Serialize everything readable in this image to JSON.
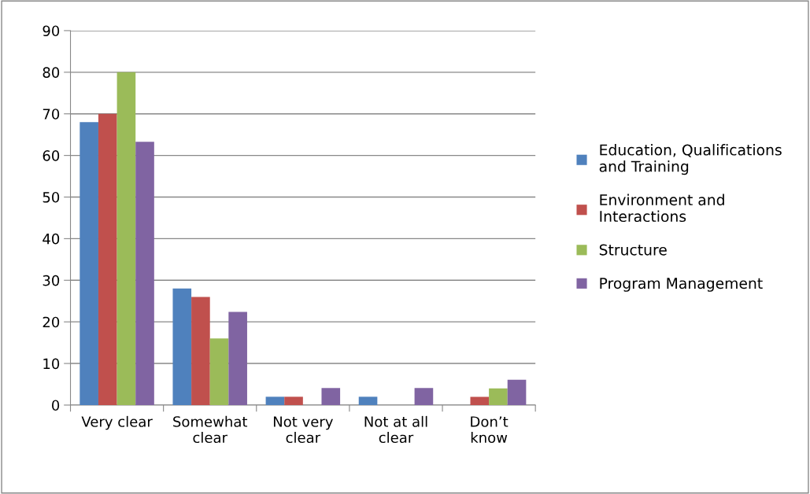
{
  "chart_data": {
    "type": "bar",
    "categories": [
      "Very clear",
      "Somewhat\nclear",
      "Not very\nclear",
      "Not at all\nclear",
      "Don’t\nknow"
    ],
    "series": [
      {
        "name": "Education, Qualifications\nand Training",
        "color": "#4f81bd",
        "values": [
          68,
          28,
          2,
          2,
          0
        ]
      },
      {
        "name": "Environment and\nInteractions",
        "color": "#c0504d",
        "values": [
          70,
          26,
          2,
          0,
          2
        ]
      },
      {
        "name": "Structure",
        "color": "#9bbb59",
        "values": [
          80,
          16,
          0,
          0,
          4
        ]
      },
      {
        "name": "Program Management",
        "color": "#8064a2",
        "values": [
          63.3,
          22.4,
          4.1,
          4.1,
          6.1
        ]
      }
    ],
    "ylim": [
      0,
      90
    ],
    "yticks": [
      0,
      10,
      20,
      30,
      40,
      50,
      60,
      70,
      80,
      90
    ],
    "grid": "y",
    "legend": "right"
  }
}
